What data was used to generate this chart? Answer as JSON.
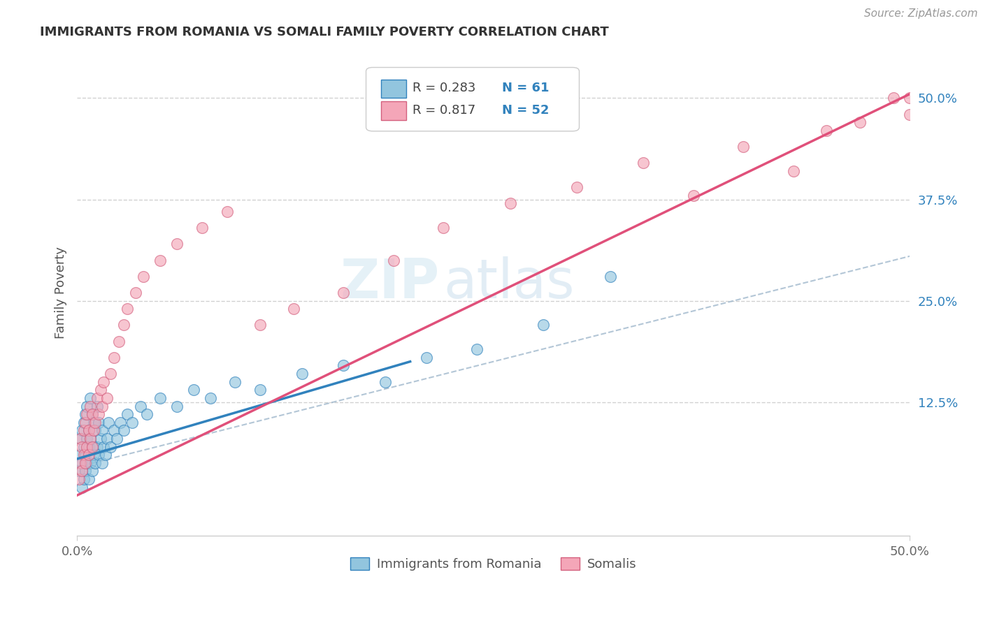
{
  "title": "IMMIGRANTS FROM ROMANIA VS SOMALI FAMILY POVERTY CORRELATION CHART",
  "source": "Source: ZipAtlas.com",
  "ylabel": "Family Poverty",
  "y_tick_labels": [
    "12.5%",
    "25.0%",
    "37.5%",
    "50.0%"
  ],
  "y_tick_positions": [
    0.125,
    0.25,
    0.375,
    0.5
  ],
  "xmin": 0.0,
  "xmax": 0.5,
  "ymin": -0.04,
  "ymax": 0.56,
  "legend_r1": "R = 0.283",
  "legend_n1": "N = 61",
  "legend_r2": "R = 0.817",
  "legend_n2": "N = 52",
  "color_blue": "#92c5de",
  "color_pink": "#f4a6b8",
  "line_blue": "#3182bd",
  "line_pink": "#e0507a",
  "line_dashed_color": "#a0b8cc",
  "watermark_zip": "ZIP",
  "watermark_atlas": "atlas",
  "legend_label1": "Immigrants from Romania",
  "legend_label2": "Somalis",
  "romania_x": [
    0.001,
    0.002,
    0.002,
    0.003,
    0.003,
    0.003,
    0.004,
    0.004,
    0.004,
    0.005,
    0.005,
    0.005,
    0.006,
    0.006,
    0.006,
    0.007,
    0.007,
    0.007,
    0.008,
    0.008,
    0.008,
    0.009,
    0.009,
    0.009,
    0.01,
    0.01,
    0.011,
    0.011,
    0.012,
    0.012,
    0.013,
    0.013,
    0.014,
    0.015,
    0.015,
    0.016,
    0.017,
    0.018,
    0.019,
    0.02,
    0.022,
    0.024,
    0.026,
    0.028,
    0.03,
    0.033,
    0.038,
    0.042,
    0.05,
    0.06,
    0.07,
    0.08,
    0.095,
    0.11,
    0.135,
    0.16,
    0.185,
    0.21,
    0.24,
    0.28,
    0.32
  ],
  "romania_y": [
    0.04,
    0.06,
    0.08,
    0.02,
    0.05,
    0.09,
    0.03,
    0.07,
    0.1,
    0.04,
    0.06,
    0.11,
    0.05,
    0.08,
    0.12,
    0.03,
    0.07,
    0.09,
    0.05,
    0.08,
    0.13,
    0.04,
    0.07,
    0.11,
    0.06,
    0.1,
    0.05,
    0.09,
    0.07,
    0.12,
    0.06,
    0.1,
    0.08,
    0.05,
    0.09,
    0.07,
    0.06,
    0.08,
    0.1,
    0.07,
    0.09,
    0.08,
    0.1,
    0.09,
    0.11,
    0.1,
    0.12,
    0.11,
    0.13,
    0.12,
    0.14,
    0.13,
    0.15,
    0.14,
    0.16,
    0.17,
    0.15,
    0.18,
    0.19,
    0.22,
    0.28
  ],
  "somali_x": [
    0.001,
    0.002,
    0.002,
    0.003,
    0.003,
    0.004,
    0.004,
    0.005,
    0.005,
    0.006,
    0.006,
    0.007,
    0.007,
    0.008,
    0.008,
    0.009,
    0.009,
    0.01,
    0.011,
    0.012,
    0.013,
    0.014,
    0.015,
    0.016,
    0.018,
    0.02,
    0.022,
    0.025,
    0.028,
    0.03,
    0.035,
    0.04,
    0.05,
    0.06,
    0.075,
    0.09,
    0.11,
    0.13,
    0.16,
    0.19,
    0.22,
    0.26,
    0.3,
    0.34,
    0.37,
    0.4,
    0.43,
    0.45,
    0.47,
    0.49,
    0.5,
    0.5
  ],
  "somali_y": [
    0.03,
    0.05,
    0.08,
    0.04,
    0.07,
    0.06,
    0.09,
    0.05,
    0.1,
    0.07,
    0.11,
    0.06,
    0.09,
    0.08,
    0.12,
    0.07,
    0.11,
    0.09,
    0.1,
    0.13,
    0.11,
    0.14,
    0.12,
    0.15,
    0.13,
    0.16,
    0.18,
    0.2,
    0.22,
    0.24,
    0.26,
    0.28,
    0.3,
    0.32,
    0.34,
    0.36,
    0.22,
    0.24,
    0.26,
    0.3,
    0.34,
    0.37,
    0.39,
    0.42,
    0.38,
    0.44,
    0.41,
    0.46,
    0.47,
    0.5,
    0.48,
    0.5
  ],
  "blue_line_x0": 0.0,
  "blue_line_y0": 0.055,
  "blue_line_x1": 0.2,
  "blue_line_y1": 0.175,
  "pink_line_x0": 0.0,
  "pink_line_y0": 0.01,
  "pink_line_x1": 0.5,
  "pink_line_y1": 0.505,
  "dash_line_x0": 0.0,
  "dash_line_y0": 0.045,
  "dash_line_x1": 0.5,
  "dash_line_y1": 0.305
}
